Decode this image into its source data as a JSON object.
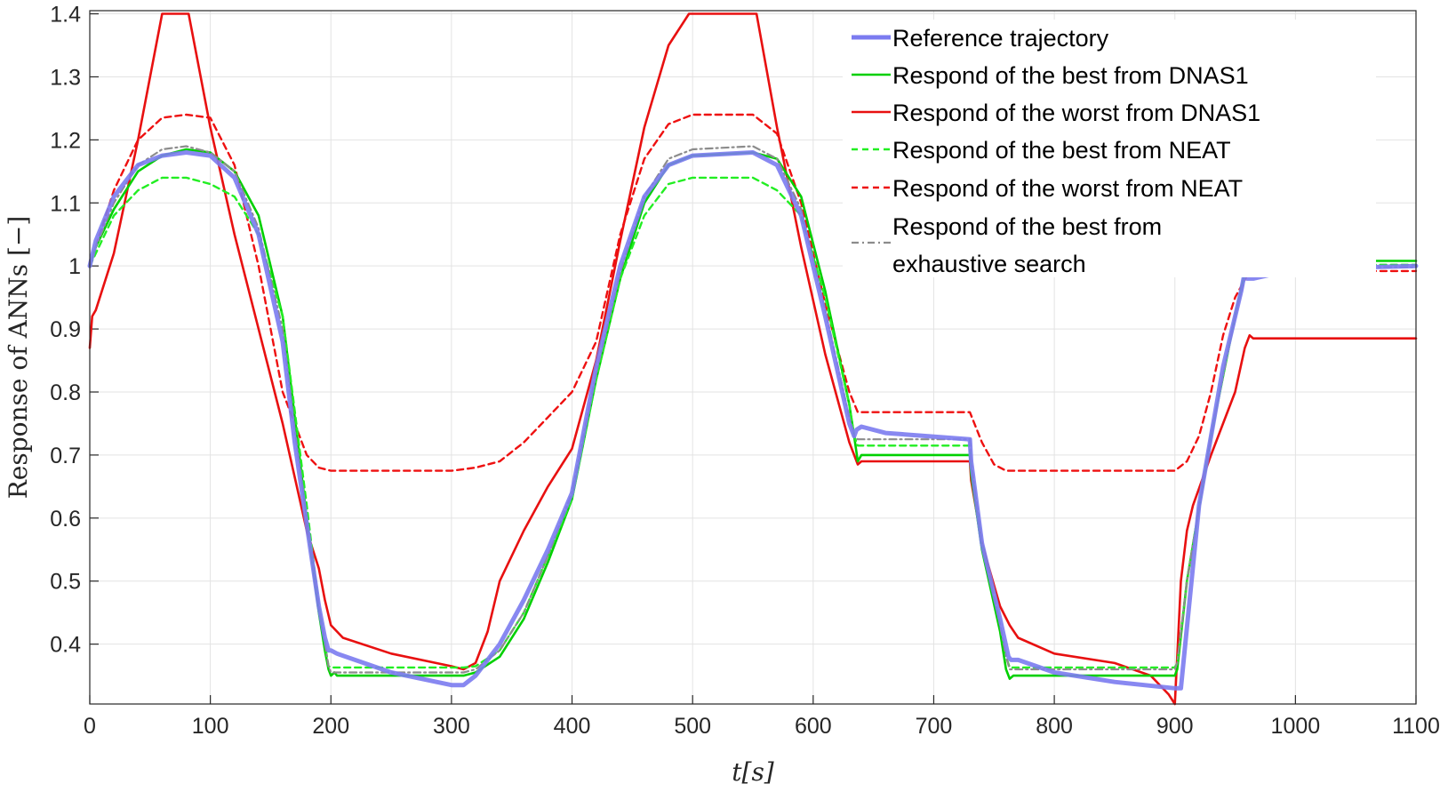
{
  "chart_data": {
    "type": "line",
    "xlabel": "t[s]",
    "ylabel": "Response of ANNs [−]",
    "xlim": [
      0,
      1100
    ],
    "ylim": [
      0.305,
      1.405
    ],
    "xticks": [
      0,
      100,
      200,
      300,
      400,
      500,
      600,
      700,
      800,
      900,
      1000,
      1100
    ],
    "xtick_labels": [
      "0",
      "100",
      "200",
      "300",
      "400",
      "500",
      "600",
      "700",
      "800",
      "900",
      "1000",
      "1100"
    ],
    "yticks": [
      0.4,
      0.5,
      0.6,
      0.7,
      0.8,
      0.9,
      1.0,
      1.1,
      1.2,
      1.3,
      1.4
    ],
    "ytick_labels": [
      "0.4",
      "0.5",
      "0.6",
      "0.7",
      "0.8",
      "0.9",
      "1",
      "1.1",
      "1.2",
      "1.3",
      "1.4"
    ],
    "grid": true,
    "legend_position": "top-right",
    "series": [
      {
        "name": "Reference trajectory",
        "color": "#7b7bf0",
        "dash": "solid",
        "x": [
          0,
          5,
          20,
          40,
          60,
          80,
          100,
          120,
          140,
          160,
          170,
          180,
          190,
          195,
          198,
          200,
          205,
          250,
          300,
          310,
          320,
          340,
          360,
          380,
          400,
          420,
          440,
          460,
          480,
          500,
          550,
          570,
          590,
          610,
          630,
          634,
          636,
          640,
          660,
          730,
          731,
          740,
          755,
          762,
          764,
          770,
          800,
          850,
          900,
          905,
          920,
          940,
          955,
          958,
          960,
          965,
          1000,
          1100
        ],
        "y": [
          1.0,
          1.04,
          1.11,
          1.16,
          1.175,
          1.18,
          1.175,
          1.14,
          1.05,
          0.88,
          0.72,
          0.59,
          0.46,
          0.41,
          0.39,
          0.39,
          0.385,
          0.355,
          0.335,
          0.335,
          0.35,
          0.4,
          0.47,
          0.55,
          0.64,
          0.84,
          1.0,
          1.11,
          1.16,
          1.175,
          1.18,
          1.16,
          1.08,
          0.92,
          0.75,
          0.73,
          0.74,
          0.745,
          0.735,
          0.725,
          0.69,
          0.56,
          0.44,
          0.38,
          0.375,
          0.375,
          0.355,
          0.34,
          0.33,
          0.33,
          0.62,
          0.84,
          0.96,
          0.99,
          0.98,
          0.98,
          0.995,
          1.0
        ]
      },
      {
        "name": "Respond of the best from DNAS1",
        "color": "#00d000",
        "dash": "solid",
        "x": [
          0,
          5,
          20,
          40,
          60,
          80,
          100,
          120,
          140,
          160,
          170,
          180,
          190,
          195,
          198,
          200,
          203,
          205,
          300,
          310,
          320,
          340,
          360,
          380,
          400,
          420,
          440,
          460,
          480,
          500,
          550,
          570,
          590,
          610,
          630,
          634,
          637,
          640,
          650,
          730,
          731,
          740,
          755,
          760,
          763,
          766,
          770,
          900,
          902,
          910,
          930,
          950,
          960,
          963,
          970,
          1100
        ],
        "y": [
          1.0,
          1.03,
          1.09,
          1.15,
          1.175,
          1.185,
          1.18,
          1.15,
          1.08,
          0.92,
          0.76,
          0.6,
          0.45,
          0.39,
          0.36,
          0.35,
          0.355,
          0.35,
          0.35,
          0.35,
          0.355,
          0.38,
          0.44,
          0.53,
          0.63,
          0.82,
          0.98,
          1.1,
          1.16,
          1.175,
          1.18,
          1.17,
          1.11,
          0.96,
          0.78,
          0.73,
          0.69,
          0.7,
          0.7,
          0.7,
          0.67,
          0.55,
          0.42,
          0.36,
          0.345,
          0.35,
          0.35,
          0.35,
          0.36,
          0.5,
          0.73,
          0.92,
          1.005,
          1.01,
          1.008,
          1.008
        ]
      },
      {
        "name": "Respond of the worst from DNAS1",
        "color": "#e81010",
        "dash": "solid",
        "x": [
          0,
          2,
          5,
          20,
          40,
          60,
          82,
          100,
          120,
          140,
          160,
          180,
          190,
          195,
          200,
          210,
          250,
          300,
          310,
          320,
          330,
          340,
          360,
          380,
          400,
          420,
          440,
          460,
          480,
          497,
          553,
          570,
          590,
          610,
          630,
          637,
          640,
          645,
          730,
          731,
          740,
          755,
          763,
          770,
          800,
          850,
          880,
          895,
          900,
          902,
          905,
          910,
          915,
          930,
          950,
          958,
          962,
          965,
          1000,
          1100
        ],
        "y": [
          0.87,
          0.92,
          0.93,
          1.02,
          1.2,
          1.4,
          1.4,
          1.22,
          1.05,
          0.9,
          0.75,
          0.58,
          0.52,
          0.47,
          0.43,
          0.41,
          0.385,
          0.365,
          0.36,
          0.37,
          0.42,
          0.5,
          0.58,
          0.65,
          0.71,
          0.85,
          1.04,
          1.22,
          1.35,
          1.4,
          1.4,
          1.22,
          1.03,
          0.86,
          0.72,
          0.685,
          0.69,
          0.69,
          0.69,
          0.66,
          0.56,
          0.46,
          0.43,
          0.41,
          0.385,
          0.37,
          0.35,
          0.32,
          0.305,
          0.38,
          0.5,
          0.58,
          0.62,
          0.7,
          0.8,
          0.87,
          0.89,
          0.885,
          0.885,
          0.885
        ]
      },
      {
        "name": "Respond of the best from NEAT",
        "color": "#22ee22",
        "dash": "dashed",
        "x": [
          0,
          5,
          20,
          40,
          60,
          80,
          100,
          120,
          140,
          160,
          170,
          180,
          190,
          195,
          198,
          200,
          300,
          310,
          320,
          340,
          360,
          380,
          400,
          420,
          440,
          460,
          480,
          500,
          550,
          570,
          590,
          610,
          630,
          634,
          637,
          640,
          730,
          731,
          740,
          755,
          760,
          763,
          770,
          900,
          902,
          910,
          930,
          950,
          960,
          965,
          1100
        ],
        "y": [
          1.0,
          1.02,
          1.08,
          1.12,
          1.14,
          1.14,
          1.13,
          1.11,
          1.05,
          0.92,
          0.77,
          0.62,
          0.46,
          0.4,
          0.365,
          0.363,
          0.363,
          0.363,
          0.365,
          0.39,
          0.45,
          0.54,
          0.63,
          0.82,
          0.98,
          1.08,
          1.13,
          1.14,
          1.14,
          1.12,
          1.08,
          0.95,
          0.78,
          0.73,
          0.715,
          0.715,
          0.715,
          0.68,
          0.56,
          0.43,
          0.38,
          0.363,
          0.363,
          0.363,
          0.37,
          0.5,
          0.73,
          0.92,
          1.0,
          1.002,
          1.002
        ]
      },
      {
        "name": "Respond of the worst from NEAT",
        "color": "#ee1010",
        "dash": "dashed",
        "x": [
          0,
          5,
          20,
          40,
          60,
          80,
          100,
          120,
          140,
          160,
          180,
          190,
          200,
          300,
          320,
          340,
          360,
          380,
          400,
          420,
          440,
          460,
          480,
          500,
          550,
          570,
          590,
          610,
          630,
          637,
          730,
          740,
          750,
          760,
          900,
          910,
          920,
          930,
          940,
          950,
          960,
          1000,
          1100
        ],
        "y": [
          1.0,
          1.03,
          1.12,
          1.2,
          1.235,
          1.24,
          1.235,
          1.16,
          1.0,
          0.8,
          0.7,
          0.68,
          0.675,
          0.675,
          0.68,
          0.69,
          0.72,
          0.76,
          0.8,
          0.88,
          1.05,
          1.17,
          1.225,
          1.24,
          1.24,
          1.21,
          1.1,
          0.94,
          0.8,
          0.768,
          0.768,
          0.72,
          0.685,
          0.675,
          0.675,
          0.69,
          0.73,
          0.8,
          0.89,
          0.95,
          0.985,
          0.992,
          0.992
        ]
      },
      {
        "name": "Respond of the best from exhaustive search",
        "color": "#8c8c8c",
        "dash": "dashdot",
        "x": [
          0,
          5,
          20,
          40,
          60,
          80,
          100,
          120,
          140,
          160,
          170,
          180,
          190,
          195,
          198,
          200,
          300,
          310,
          320,
          340,
          360,
          380,
          400,
          420,
          440,
          460,
          480,
          500,
          550,
          570,
          590,
          610,
          630,
          634,
          637,
          640,
          730,
          731,
          740,
          755,
          760,
          763,
          770,
          900,
          902,
          910,
          930,
          950,
          960,
          965,
          1100
        ],
        "y": [
          1.0,
          1.03,
          1.1,
          1.16,
          1.185,
          1.19,
          1.18,
          1.15,
          1.06,
          0.9,
          0.74,
          0.6,
          0.46,
          0.4,
          0.365,
          0.355,
          0.355,
          0.355,
          0.36,
          0.39,
          0.45,
          0.54,
          0.64,
          0.83,
          0.99,
          1.11,
          1.17,
          1.185,
          1.19,
          1.17,
          1.09,
          0.93,
          0.76,
          0.73,
          0.725,
          0.725,
          0.725,
          0.69,
          0.56,
          0.43,
          0.38,
          0.36,
          0.36,
          0.36,
          0.37,
          0.5,
          0.73,
          0.92,
          0.995,
          0.998,
          0.998
        ]
      }
    ],
    "legend_labels": [
      [
        "Reference trajectory"
      ],
      [
        "Respond of the best from DNAS1"
      ],
      [
        "Respond of the worst from DNAS1"
      ],
      [
        "Respond of the best from NEAT"
      ],
      [
        "Respond of the worst from NEAT"
      ],
      [
        "Respond of the best from",
        "exhaustive search"
      ]
    ]
  }
}
